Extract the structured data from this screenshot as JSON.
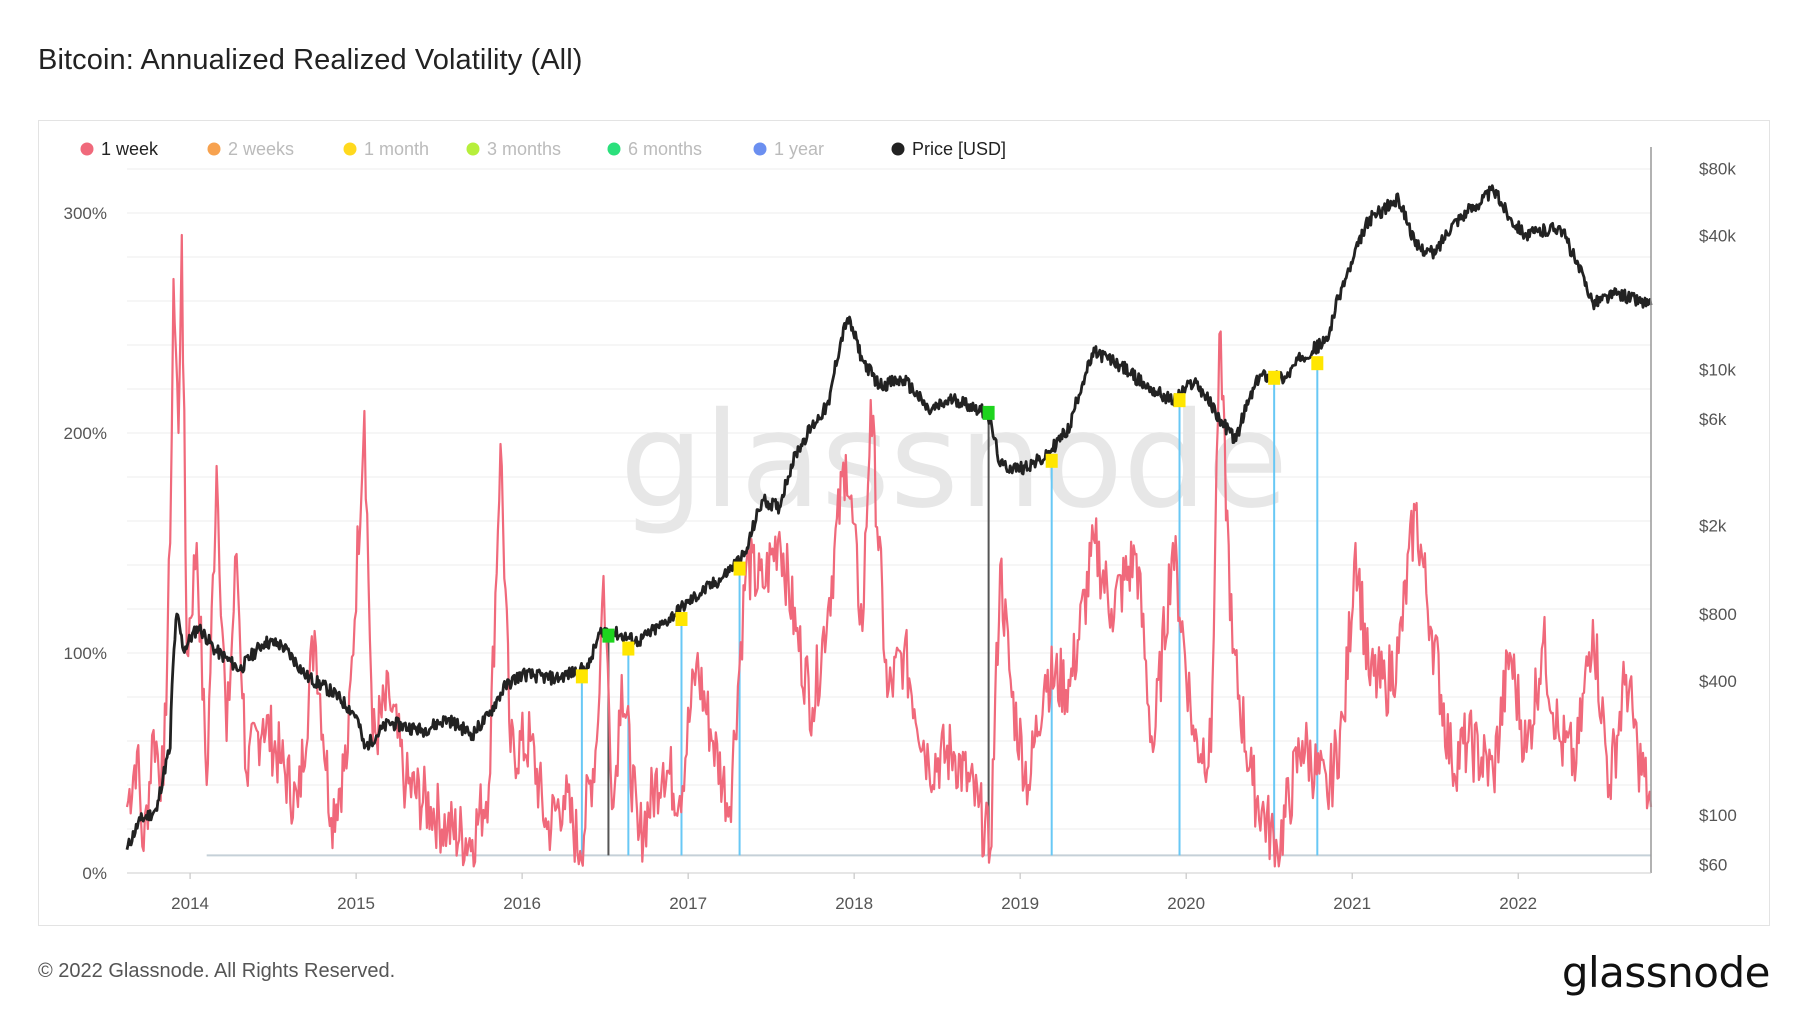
{
  "title": "Bitcoin: Annualized Realized Volatility (All)",
  "footer": {
    "copyright": "© 2022 Glassnode. All Rights Reserved.",
    "logo": "glassnode"
  },
  "watermark": "glassnode",
  "colors": {
    "vol_1w": "#f0697b",
    "price": "#222222",
    "marker_yellow": "#ffe600",
    "marker_green": "#1ed41e",
    "signal_blue": "#68c8f5",
    "signal_dark": "#555555",
    "grid": "#eeeeee"
  },
  "chart_data": {
    "type": "line",
    "legend": [
      {
        "label": "1 week",
        "color": "#f0697b",
        "active": true
      },
      {
        "label": "2 weeks",
        "color": "#f7a24f",
        "active": false
      },
      {
        "label": "1 month",
        "color": "#ffd91e",
        "active": false
      },
      {
        "label": "3 months",
        "color": "#b7ef3c",
        "active": false
      },
      {
        "label": "6 months",
        "color": "#2be07c",
        "active": false
      },
      {
        "label": "1 year",
        "color": "#6b8ff0",
        "active": false
      },
      {
        "label": "Price [USD]",
        "color": "#222222",
        "active": true
      }
    ],
    "legend_placement": "top-left",
    "x_range": [
      2013.62,
      2022.8
    ],
    "x_ticks": [
      "2014",
      "2015",
      "2016",
      "2017",
      "2018",
      "2019",
      "2020",
      "2021",
      "2022"
    ],
    "y_left": {
      "ticks": [
        "0%",
        "100%",
        "200%",
        "300%"
      ],
      "ylim": [
        0,
        330
      ]
    },
    "y_right": {
      "scale": "log",
      "ticks": [
        "$60",
        "$100",
        "$400",
        "$800",
        "$2k",
        "$6k",
        "$10k",
        "$40k",
        "$80k"
      ],
      "ylim": [
        55,
        100000
      ]
    },
    "grid": true,
    "series": [
      {
        "name": "Price [USD]",
        "axis": "right",
        "points": [
          [
            2013.62,
            70
          ],
          [
            2013.7,
            95
          ],
          [
            2013.8,
            105
          ],
          [
            2013.88,
            200
          ],
          [
            2013.92,
            800
          ],
          [
            2013.96,
            550
          ],
          [
            2014.05,
            700
          ],
          [
            2014.15,
            550
          ],
          [
            2014.3,
            450
          ],
          [
            2014.45,
            600
          ],
          [
            2014.55,
            580
          ],
          [
            2014.7,
            420
          ],
          [
            2014.85,
            360
          ],
          [
            2015.0,
            280
          ],
          [
            2015.05,
            200
          ],
          [
            2015.2,
            260
          ],
          [
            2015.4,
            240
          ],
          [
            2015.55,
            270
          ],
          [
            2015.7,
            230
          ],
          [
            2015.8,
            280
          ],
          [
            2015.9,
            380
          ],
          [
            2016.0,
            430
          ],
          [
            2016.2,
            410
          ],
          [
            2016.4,
            460
          ],
          [
            2016.48,
            680
          ],
          [
            2016.55,
            660
          ],
          [
            2016.7,
            600
          ],
          [
            2016.85,
            720
          ],
          [
            2017.0,
            900
          ],
          [
            2017.2,
            1150
          ],
          [
            2017.35,
            1500
          ],
          [
            2017.45,
            2600
          ],
          [
            2017.55,
            2400
          ],
          [
            2017.65,
            4200
          ],
          [
            2017.85,
            7000
          ],
          [
            2017.96,
            17000
          ],
          [
            2018.05,
            11000
          ],
          [
            2018.15,
            8500
          ],
          [
            2018.3,
            9000
          ],
          [
            2018.45,
            6500
          ],
          [
            2018.6,
            7400
          ],
          [
            2018.8,
            6400
          ],
          [
            2018.88,
            3700
          ],
          [
            2019.0,
            3600
          ],
          [
            2019.15,
            4000
          ],
          [
            2019.3,
            5500
          ],
          [
            2019.45,
            12000
          ],
          [
            2019.6,
            10500
          ],
          [
            2019.75,
            8500
          ],
          [
            2019.92,
            7200
          ],
          [
            2020.05,
            8900
          ],
          [
            2020.2,
            6000
          ],
          [
            2020.3,
            4800
          ],
          [
            2020.45,
            9500
          ],
          [
            2020.6,
            9200
          ],
          [
            2020.7,
            11500
          ],
          [
            2020.85,
            13500
          ],
          [
            2021.0,
            30000
          ],
          [
            2021.1,
            47000
          ],
          [
            2021.28,
            58000
          ],
          [
            2021.38,
            36000
          ],
          [
            2021.5,
            33000
          ],
          [
            2021.6,
            45000
          ],
          [
            2021.75,
            55000
          ],
          [
            2021.85,
            64000
          ],
          [
            2021.95,
            48000
          ],
          [
            2022.05,
            40000
          ],
          [
            2022.25,
            44000
          ],
          [
            2022.35,
            30000
          ],
          [
            2022.45,
            20000
          ],
          [
            2022.6,
            22000
          ],
          [
            2022.8,
            19500
          ]
        ]
      },
      {
        "name": "1 week",
        "axis": "left",
        "points": [
          [
            2013.62,
            30
          ],
          [
            2013.68,
            55
          ],
          [
            2013.72,
            10
          ],
          [
            2013.78,
            65
          ],
          [
            2013.84,
            40
          ],
          [
            2013.88,
            150
          ],
          [
            2013.9,
            270
          ],
          [
            2013.93,
            200
          ],
          [
            2013.95,
            290
          ],
          [
            2013.98,
            100
          ],
          [
            2014.04,
            150
          ],
          [
            2014.1,
            40
          ],
          [
            2014.16,
            185
          ],
          [
            2014.22,
            60
          ],
          [
            2014.28,
            145
          ],
          [
            2014.34,
            45
          ],
          [
            2014.44,
            70
          ],
          [
            2014.55,
            50
          ],
          [
            2014.65,
            30
          ],
          [
            2014.75,
            110
          ],
          [
            2014.85,
            25
          ],
          [
            2014.95,
            55
          ],
          [
            2015.05,
            210
          ],
          [
            2015.1,
            60
          ],
          [
            2015.2,
            80
          ],
          [
            2015.3,
            40
          ],
          [
            2015.45,
            30
          ],
          [
            2015.55,
            20
          ],
          [
            2015.7,
            15
          ],
          [
            2015.8,
            40
          ],
          [
            2015.87,
            195
          ],
          [
            2015.93,
            55
          ],
          [
            2016.05,
            60
          ],
          [
            2016.15,
            20
          ],
          [
            2016.25,
            35
          ],
          [
            2016.35,
            10
          ],
          [
            2016.45,
            60
          ],
          [
            2016.49,
            135
          ],
          [
            2016.55,
            30
          ],
          [
            2016.6,
            90
          ],
          [
            2016.7,
            15
          ],
          [
            2016.85,
            50
          ],
          [
            2016.95,
            35
          ],
          [
            2017.05,
            95
          ],
          [
            2017.15,
            60
          ],
          [
            2017.25,
            30
          ],
          [
            2017.35,
            140
          ],
          [
            2017.45,
            130
          ],
          [
            2017.55,
            155
          ],
          [
            2017.65,
            110
          ],
          [
            2017.75,
            75
          ],
          [
            2017.85,
            125
          ],
          [
            2017.95,
            190
          ],
          [
            2018.05,
            110
          ],
          [
            2018.1,
            215
          ],
          [
            2018.2,
            80
          ],
          [
            2018.3,
            100
          ],
          [
            2018.45,
            50
          ],
          [
            2018.6,
            55
          ],
          [
            2018.75,
            30
          ],
          [
            2018.82,
            10
          ],
          [
            2018.88,
            140
          ],
          [
            2018.95,
            80
          ],
          [
            2019.05,
            40
          ],
          [
            2019.15,
            90
          ],
          [
            2019.3,
            85
          ],
          [
            2019.45,
            150
          ],
          [
            2019.55,
            120
          ],
          [
            2019.7,
            145
          ],
          [
            2019.8,
            55
          ],
          [
            2019.92,
            150
          ],
          [
            2020.05,
            60
          ],
          [
            2020.15,
            55
          ],
          [
            2020.2,
            245
          ],
          [
            2020.28,
            100
          ],
          [
            2020.4,
            40
          ],
          [
            2020.55,
            10
          ],
          [
            2020.7,
            60
          ],
          [
            2020.85,
            35
          ],
          [
            2020.95,
            70
          ],
          [
            2021.02,
            150
          ],
          [
            2021.1,
            90
          ],
          [
            2021.2,
            85
          ],
          [
            2021.28,
            100
          ],
          [
            2021.38,
            165
          ],
          [
            2021.48,
            110
          ],
          [
            2021.6,
            50
          ],
          [
            2021.7,
            60
          ],
          [
            2021.85,
            45
          ],
          [
            2021.95,
            100
          ],
          [
            2022.05,
            55
          ],
          [
            2022.15,
            105
          ],
          [
            2022.25,
            60
          ],
          [
            2022.35,
            50
          ],
          [
            2022.45,
            115
          ],
          [
            2022.55,
            40
          ],
          [
            2022.65,
            90
          ],
          [
            2022.72,
            55
          ],
          [
            2022.8,
            30
          ]
        ]
      }
    ],
    "signals": [
      {
        "x": 2016.36,
        "level": "1 month",
        "price": 420
      },
      {
        "x": 2016.52,
        "level": "6 months",
        "price": 640
      },
      {
        "x": 2016.64,
        "level": "1 month",
        "price": 560
      },
      {
        "x": 2016.96,
        "level": "1 month",
        "price": 760
      },
      {
        "x": 2017.31,
        "level": "1 month",
        "price": 1280
      },
      {
        "x": 2018.81,
        "level": "6 months",
        "price": 6400
      },
      {
        "x": 2019.19,
        "level": "1 month",
        "price": 3900
      },
      {
        "x": 2019.96,
        "level": "1 month",
        "price": 7300
      },
      {
        "x": 2020.53,
        "level": "1 month",
        "price": 9200
      },
      {
        "x": 2020.79,
        "level": "1 month",
        "price": 10700
      }
    ]
  }
}
